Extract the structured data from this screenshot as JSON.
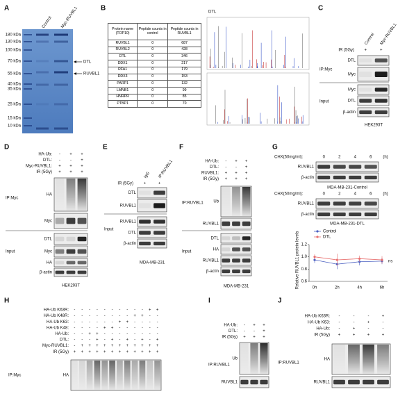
{
  "panels": {
    "a": {
      "letter": "A",
      "columns": [
        "Control",
        "Myc-RUVBL1"
      ],
      "markers": [
        "180 kDa",
        "130 kDa",
        "100 kDa",
        "70 kDa",
        "55 kDa",
        "40 kDa",
        "35 kDa",
        "25 kDa",
        "15 kDa",
        "10 kDa"
      ],
      "arrows": [
        "DTL",
        "RUVBL1"
      ]
    },
    "b": {
      "letter": "B",
      "table": {
        "header": [
          "Protein name (TOP10)",
          "Peptide counts in control",
          "Peptide counts in RUVBL1"
        ],
        "rows": [
          [
            "RUVBL1",
            0,
            687
          ],
          [
            "RUVBL2",
            0,
            428
          ],
          [
            "DTL",
            0,
            346
          ],
          [
            "DDX1",
            0,
            217
          ],
          [
            "RFA1",
            0,
            179
          ],
          [
            "DDX3",
            0,
            153
          ],
          [
            "PARP1",
            0,
            132
          ],
          [
            "LMNB1",
            0,
            99
          ],
          [
            "HNRPR",
            0,
            85
          ],
          [
            "PTBP1",
            0,
            70
          ]
        ]
      },
      "spectrum_label": "DTL"
    },
    "c": {
      "letter": "C",
      "columns": [
        "Control",
        "Myc-RUVBL1"
      ],
      "rows": [
        {
          "label": "IR (5Gy)",
          "signs": [
            "+",
            "+"
          ]
        }
      ],
      "groups": [
        "IP:Myc",
        "Input"
      ],
      "blots": [
        "DTL",
        "Myc",
        "Myc",
        "DTL",
        "β-actin"
      ],
      "cell": "HEK293T"
    },
    "d": {
      "letter": "D",
      "rows": [
        {
          "label": "HA-Ub:",
          "signs": [
            "-",
            "+",
            "+"
          ]
        },
        {
          "label": "DTL:",
          "signs": [
            "-",
            "-",
            "+"
          ]
        },
        {
          "label": "Myc-RUVBL1:",
          "signs": [
            "+",
            "+",
            "+"
          ]
        },
        {
          "label": "IR (5Gy)",
          "signs": [
            "+",
            "+",
            "+"
          ]
        }
      ],
      "groups": [
        "IP:Myc",
        "Input"
      ],
      "blots": [
        "HA",
        "Myc",
        "DTL",
        "Myc",
        "HA",
        "β-actin"
      ],
      "cell": "HEK293T"
    },
    "e": {
      "letter": "E",
      "columns": [
        "IgG",
        "IP:RUVBL1"
      ],
      "rows": [
        {
          "label": "IR (5Gy)",
          "signs": [
            "+",
            "+"
          ]
        }
      ],
      "groups": [
        "Input"
      ],
      "blots": [
        "DTL",
        "RUVBL1",
        "RUVBL1",
        "DTL",
        "β-actin"
      ],
      "cell": "MDA-MB-231"
    },
    "f": {
      "letter": "F",
      "rows": [
        {
          "label": "HA-Ub:",
          "signs": [
            "-",
            "+",
            "+"
          ]
        },
        {
          "label": "DTL:",
          "signs": [
            "-",
            "-",
            "+"
          ]
        },
        {
          "label": "RUVBL1:",
          "signs": [
            "+",
            "+",
            "+"
          ]
        },
        {
          "label": "IR (5Gy)",
          "signs": [
            "+",
            "+",
            "+"
          ]
        }
      ],
      "groups": [
        "IP:RUVBL1",
        "Input"
      ],
      "blots": [
        "Ub",
        "RUVBL1",
        "DTL",
        "HA",
        "RUVBL1",
        "β-actin"
      ],
      "cell": "MDA-MB-231"
    },
    "g": {
      "letter": "G",
      "treatment": "CHX(50mg/ml):",
      "times": [
        0,
        2,
        4,
        6
      ],
      "unit": "(h)",
      "blots": [
        "RUVBL1",
        "β-actin",
        "RUVBL1",
        "β-actin"
      ],
      "cells": [
        "MDA-MB-231-Control",
        "MDA-MB-231-DTL"
      ]
    },
    "h": {
      "letter": "H",
      "rows": [
        {
          "label": "HA-Ub K63R:",
          "signs": [
            "-",
            "-",
            "-",
            "-",
            "-",
            "-",
            "-",
            "-",
            "-",
            "-",
            "+",
            "+"
          ]
        },
        {
          "label": "HA-Ub K48R:",
          "signs": [
            "-",
            "-",
            "-",
            "-",
            "-",
            "-",
            "-",
            "-",
            "+",
            "+",
            "-",
            "-"
          ]
        },
        {
          "label": "HA-Ub K63:",
          "signs": [
            "-",
            "-",
            "-",
            "-",
            "-",
            "-",
            "+",
            "+",
            "-",
            "-",
            "-",
            "-"
          ]
        },
        {
          "label": "HA-Ub K48:",
          "signs": [
            "-",
            "-",
            "-",
            "-",
            "+",
            "+",
            "-",
            "-",
            "-",
            "-",
            "-",
            "-"
          ]
        },
        {
          "label": "HA-Ub:",
          "signs": [
            "-",
            "-",
            "+",
            "+",
            "-",
            "-",
            "-",
            "-",
            "-",
            "-",
            "-",
            "-"
          ]
        },
        {
          "label": "DTL:",
          "signs": [
            "-",
            "-",
            "-",
            "+",
            "-",
            "+",
            "-",
            "+",
            "-",
            "+",
            "-",
            "+"
          ]
        },
        {
          "label": "Myc-RUVBL1:",
          "signs": [
            "-",
            "+",
            "+",
            "+",
            "+",
            "+",
            "+",
            "+",
            "+",
            "+",
            "+",
            "+"
          ]
        },
        {
          "label": "IR (5Gy)",
          "signs": [
            "+",
            "+",
            "+",
            "+",
            "+",
            "+",
            "+",
            "+",
            "+",
            "+",
            "+",
            "+"
          ]
        }
      ],
      "groups": [
        "IP:Myc"
      ],
      "blots": [
        "HA"
      ]
    },
    "i": {
      "letter": "I",
      "rows": [
        {
          "label": "HA-Ub:",
          "signs": [
            "-",
            "+",
            "+"
          ]
        },
        {
          "label": "DTL:",
          "signs": [
            "-",
            "-",
            "+"
          ]
        },
        {
          "label": "IR (5Gy)",
          "signs": [
            "+",
            "+",
            "+"
          ]
        }
      ],
      "groups": [
        "IP:RUVBL1"
      ],
      "blots": [
        "Ub",
        "RUVBL1"
      ]
    },
    "j": {
      "letter": "J",
      "rows": [
        {
          "label": "HA-Ub K63R:",
          "signs": [
            "-",
            "-",
            "-",
            "+"
          ]
        },
        {
          "label": "HA-Ub K63:",
          "signs": [
            "-",
            "-",
            "+",
            "-"
          ]
        },
        {
          "label": "HA-Ub:",
          "signs": [
            "-",
            "+",
            "-",
            "-"
          ]
        },
        {
          "label": "IR (5Gy)",
          "signs": [
            "+",
            "+",
            "+",
            "+"
          ]
        }
      ],
      "groups": [
        "IP:RUVBL1"
      ],
      "blots": [
        "HA",
        "RUVBL1"
      ]
    }
  },
  "chart_data": {
    "type": "line",
    "y_label": "Relative RUVBL1 protein levels",
    "categories": [
      "0h",
      "2h",
      "4h",
      "6h"
    ],
    "series": [
      {
        "name": "Control",
        "color": "#4a5fc1",
        "values": [
          0.95,
          0.88,
          0.92,
          0.93
        ],
        "errors": [
          0.05,
          0.08,
          0.06,
          0.05
        ]
      },
      {
        "name": "DTL",
        "color": "#e8706f",
        "values": [
          1.0,
          0.95,
          0.97,
          0.95
        ],
        "errors": [
          0.04,
          0.1,
          0.05,
          0.06
        ]
      }
    ],
    "ylim": [
      0.6,
      1.2
    ],
    "yticks": [
      0.6,
      0.8,
      {
        "value": 1,
        "label": "1.0"
      },
      1.2
    ],
    "annotation": "ns"
  }
}
